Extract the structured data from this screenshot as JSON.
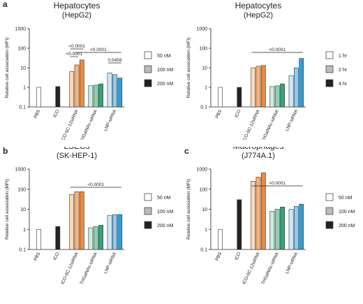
{
  "chart_data": [
    {
      "type": "bar",
      "panel": "a",
      "title": "Hepatocytes",
      "subtitle": "(HepG2)",
      "ylabel": "Relative cell association (MFI)",
      "log_scale": true,
      "ylim": [
        0.1,
        1000
      ],
      "yticks": [
        0.1,
        1,
        10,
        100,
        1000
      ],
      "categories": [
        "PBS",
        "ICO",
        "ICO-6C-12siRNA",
        "TriGalNAc-siRNA",
        "LNP-siRNA"
      ],
      "series": [
        {
          "name": "50 nM",
          "color": "#ffffff",
          "bar_colors": [
            "#ffffff",
            "#222222",
            "#fcd9b5",
            "#cfe9dc",
            "#cfe8f5"
          ],
          "values": [
            1,
            1.1,
            6.5,
            1.2,
            5.5
          ]
        },
        {
          "name": "100 nM",
          "color": "#bbbbbb",
          "bar_colors": [
            null,
            null,
            "#f7b27a",
            "#8fcfb2",
            "#8fcbee"
          ],
          "values": [
            null,
            null,
            14,
            1.3,
            4.5
          ]
        },
        {
          "name": "200 nM",
          "color": "#222222",
          "bar_colors": [
            null,
            null,
            "#f08a3a",
            "#2fa57a",
            "#2b9fd8"
          ],
          "values": [
            null,
            null,
            25,
            1.5,
            3
          ]
        }
      ],
      "annotations": [
        "<0.0001",
        "<0.0001",
        "<0.0001",
        "0.0459"
      ]
    },
    {
      "type": "bar",
      "title": "Hepatocytes",
      "subtitle": "(HepG2)",
      "ylabel": "Relative cell association (MFI)",
      "log_scale": true,
      "ylim": [
        0.1,
        1000
      ],
      "yticks": [
        0.1,
        1,
        10,
        100,
        1000
      ],
      "categories": [
        "PBS",
        "ICO",
        "ICO-6C-12siRNA",
        "TriGalNAc-siRNA",
        "LNP-siRNA"
      ],
      "series": [
        {
          "name": "1 hr",
          "color": "#ffffff",
          "bar_colors": [
            "#ffffff",
            "#222222",
            "#fcd9b5",
            "#cfe9dc",
            "#cfe8f5"
          ],
          "values": [
            1,
            1,
            10,
            1.1,
            4
          ]
        },
        {
          "name": "2 hr",
          "color": "#bbbbbb",
          "bar_colors": [
            null,
            null,
            "#f7b27a",
            "#8fcfb2",
            "#8fcbee"
          ],
          "values": [
            null,
            null,
            12,
            1.2,
            10
          ]
        },
        {
          "name": "4 hr",
          "color": "#222222",
          "bar_colors": [
            null,
            null,
            "#f08a3a",
            "#2fa57a",
            "#2b9fd8"
          ],
          "values": [
            null,
            null,
            13,
            1.5,
            30
          ]
        }
      ],
      "annotations": [
        "<0.0001"
      ]
    },
    {
      "type": "bar",
      "panel": "b",
      "title": "LSECs",
      "subtitle": "(SK-HEP-1)",
      "ylabel": "Relative cell association (MFI)",
      "log_scale": true,
      "ylim": [
        0.1,
        1000
      ],
      "yticks": [
        0.1,
        1,
        10,
        100,
        1000
      ],
      "categories": [
        "PBS",
        "ICO",
        "ICO-6C-12siRNA",
        "TriGalNAc-siRNA",
        "LNP-siRNA"
      ],
      "series": [
        {
          "name": "50 nM",
          "color": "#ffffff",
          "bar_colors": [
            "#ffffff",
            "#222222",
            "#fcd9b5",
            "#cfe9dc",
            "#cfe8f5"
          ],
          "values": [
            1,
            1.4,
            55,
            1.2,
            5
          ]
        },
        {
          "name": "100 nM",
          "color": "#bbbbbb",
          "bar_colors": [
            null,
            null,
            "#f7b27a",
            "#8fcfb2",
            "#8fcbee"
          ],
          "values": [
            null,
            null,
            75,
            1.4,
            5.5
          ]
        },
        {
          "name": "200 nM",
          "color": "#222222",
          "bar_colors": [
            null,
            null,
            "#f08a3a",
            "#2fa57a",
            "#2b9fd8"
          ],
          "values": [
            null,
            null,
            75,
            1.6,
            5.5
          ]
        }
      ],
      "annotations": [
        "<0.0001"
      ]
    },
    {
      "type": "bar",
      "panel": "c",
      "title": "Macrophages",
      "subtitle": "(J774A.1)",
      "ylabel": "Relative cell association (MFI)",
      "log_scale": true,
      "ylim": [
        0.1,
        1000
      ],
      "yticks": [
        0.1,
        1,
        10,
        100,
        1000
      ],
      "categories": [
        "PBS",
        "ICO",
        "ICO-6C-12siRNA",
        "TriGalNAc-siRNA",
        "LNP-siRNA"
      ],
      "series": [
        {
          "name": "50 nM",
          "color": "#ffffff",
          "bar_colors": [
            "#ffffff",
            "#222222",
            "#fcd9b5",
            "#cfe9dc",
            "#cfe8f5"
          ],
          "values": [
            1,
            30,
            250,
            8,
            10
          ]
        },
        {
          "name": "100 nM",
          "color": "#bbbbbb",
          "bar_colors": [
            null,
            null,
            "#f7b27a",
            "#8fcfb2",
            "#8fcbee"
          ],
          "values": [
            null,
            null,
            400,
            10,
            14
          ]
        },
        {
          "name": "200 nM",
          "color": "#222222",
          "bar_colors": [
            null,
            null,
            "#f08a3a",
            "#2fa57a",
            "#2b9fd8"
          ],
          "values": [
            null,
            null,
            650,
            13,
            18
          ]
        }
      ],
      "annotations": [
        "<0.0001"
      ]
    }
  ]
}
